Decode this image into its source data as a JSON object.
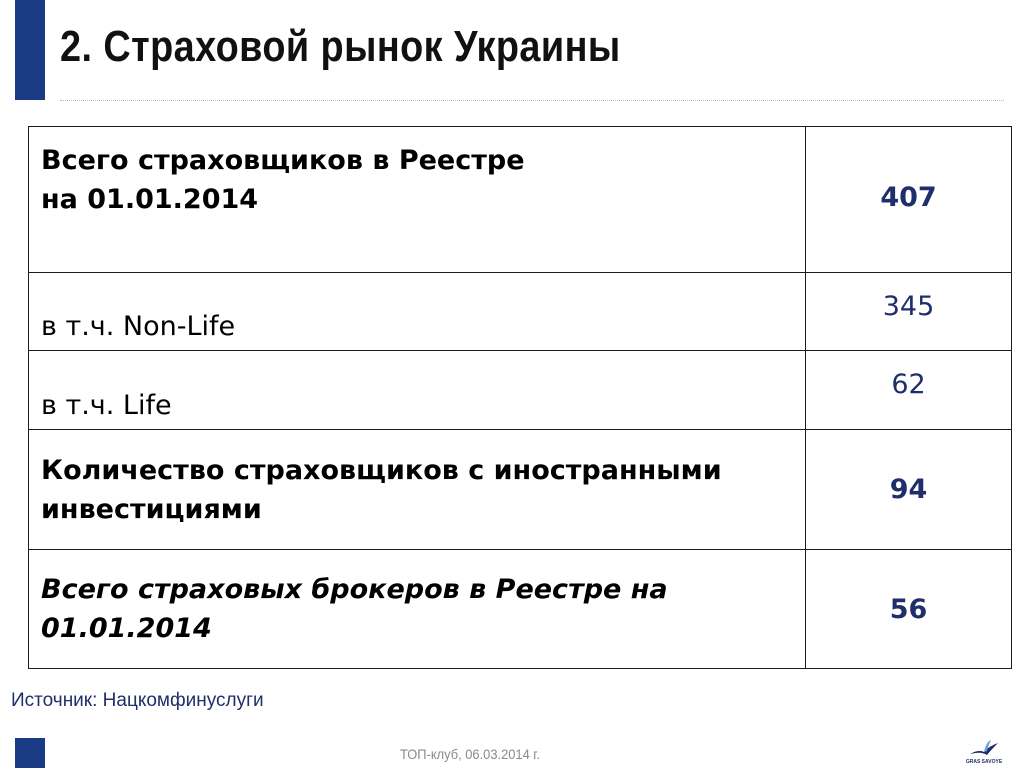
{
  "slide": {
    "title": "2. Страховой рынок Украины",
    "accent_color": "#1a3a85",
    "value_color": "#1f2f6b"
  },
  "table": {
    "rows": [
      {
        "label_line1": "Всего страховщиков в Реестре",
        "label_line2": "на 01.01.2014",
        "value": "407"
      },
      {
        "label": "в т.ч. Non-Life",
        "value": "345"
      },
      {
        "label": "в т.ч. Life",
        "value": "62"
      },
      {
        "label_line1": "Количество страховщиков с иностранными",
        "label_line2": "инвестициями",
        "value": "94"
      },
      {
        "label_line1": "Всего страховых брокеров в Реестре на",
        "label_line2": "01.01.2014",
        "value": "56"
      }
    ]
  },
  "chart_data": {
    "type": "table",
    "columns": [
      "",
      ""
    ],
    "rows": [
      [
        "Всего страховщиков в Реестре на 01.01.2014",
        407
      ],
      [
        "в т.ч. Non-Life",
        345
      ],
      [
        "в т.ч. Life",
        62
      ],
      [
        "Количество страховщиков с иностранными инвестициями",
        94
      ],
      [
        "Всего страховых брокеров в Реестре на 01.01.2014",
        56
      ]
    ]
  },
  "source": {
    "text": "Источник: Нацкомфинуслуги"
  },
  "footer": {
    "text": "ТОП-клуб, 06.03.2014 г.",
    "logo_name": "gras-savoye-logo",
    "logo_text": "GRAS SAVOYE"
  }
}
